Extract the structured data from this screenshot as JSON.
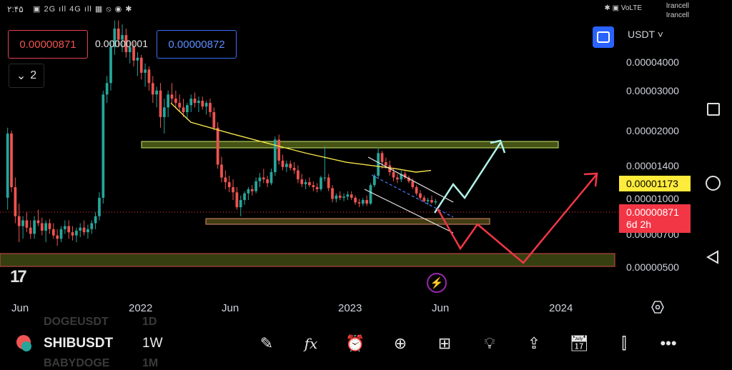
{
  "status_bar": {
    "time": "۲:۴۵",
    "icons_text": "▣ 2G ıll 4G ıll ▦ ⦸ ◉ ✱",
    "carrier_1": "Irancell",
    "carrier_2": "Irancell",
    "sys_icons": "✱ ▣ VoLTE"
  },
  "order_panel": {
    "sell_price": "0.00000871",
    "spread": "0.00000001",
    "buy_price": "0.00000872"
  },
  "indicators_toggle": {
    "count": "2"
  },
  "quote_currency": "USDT",
  "y_axis_labels": [
    "0.00004000",
    "0.00003000",
    "0.00002000",
    "0.00001400",
    "0.00001000",
    "0.00000700",
    "0.00000500"
  ],
  "last_price_tag": {
    "ma_value": "0.00001173",
    "price": "0.00000871",
    "countdown": "6d 2h"
  },
  "x_axis_labels": [
    "Jun",
    "2022",
    "Jun",
    "2023",
    "Jun",
    "2024"
  ],
  "bottom_bar": {
    "symbol": "SHIBUSDT",
    "interval": "1W",
    "ghost_above_symbol": "DOGEUSDT",
    "ghost_above_interval": "1D",
    "ghost_below_symbol": "BABYDOGE",
    "ghost_below_interval": "1M"
  },
  "toolbar_icons": [
    "drawing-pen-icon",
    "function-fx-icon",
    "alert-clock-icon",
    "add-circle-icon",
    "grid-layout-icon",
    "idea-bulb-icon",
    "share-icon",
    "calendar-replay-icon",
    "candles-icon",
    "more-dots-icon"
  ],
  "colors": {
    "up": "#26a69a",
    "down": "#ef5350",
    "ma_line": "#f5e44b",
    "zone_fill": "#6b7a21",
    "zone_border": "#c4e86a",
    "projection_up": "#b2f5ec",
    "projection_down": "#f23645",
    "accent": "#2962ff"
  },
  "chart_data": {
    "type": "candlestick",
    "timeframe": "1W",
    "symbol": "SHIBUSDT",
    "y_scale": "log",
    "ylim": [
      4.5e-06,
      4.8e-05
    ],
    "candles": [
      [
        9e-06,
        1.8e-05,
        8e-06,
        1.7e-05
      ],
      [
        1.7e-05,
        1.75e-05,
        9.5e-06,
        1e-05
      ],
      [
        1e-05,
        1.1e-05,
        7e-06,
        7.5e-06
      ],
      [
        7.5e-06,
        8.5e-06,
        5.8e-06,
        6.8e-06
      ],
      [
        6.8e-06,
        7.5e-06,
        6e-06,
        7.2e-06
      ],
      [
        7.2e-06,
        7.8e-06,
        6.4e-06,
        6.7e-06
      ],
      [
        6.7e-06,
        7.2e-06,
        6e-06,
        6.3e-06
      ],
      [
        6.3e-06,
        7.5e-06,
        6e-06,
        7.2e-06
      ],
      [
        7.2e-06,
        8e-06,
        6.8e-06,
        7e-06
      ],
      [
        7e-06,
        7.4e-06,
        6.2e-06,
        6.5e-06
      ],
      [
        6.5e-06,
        7.2e-06,
        5.8e-06,
        7e-06
      ],
      [
        7e-06,
        7.3e-06,
        6.3e-06,
        6.6e-06
      ],
      [
        6.6e-06,
        7e-06,
        6e-06,
        6.2e-06
      ],
      [
        6.2e-06,
        6.6e-06,
        5.6e-06,
        6e-06
      ],
      [
        6e-06,
        6.8e-06,
        5.8e-06,
        6.6e-06
      ],
      [
        6.6e-06,
        7.2e-06,
        6.3e-06,
        6.8e-06
      ],
      [
        6.8e-06,
        7.2e-06,
        6e-06,
        6.4e-06
      ],
      [
        6.4e-06,
        6.8e-06,
        5.9e-06,
        6.2e-06
      ],
      [
        6.2e-06,
        6.7e-06,
        5.8e-06,
        6.5e-06
      ],
      [
        6.5e-06,
        7e-06,
        6.1e-06,
        6.7e-06
      ],
      [
        6.7e-06,
        7.2e-06,
        6.2e-06,
        6.4e-06
      ],
      [
        6.4e-06,
        6.9e-06,
        6e-06,
        6.6e-06
      ],
      [
        6.6e-06,
        7.2e-06,
        6.3e-06,
        7e-06
      ],
      [
        7e-06,
        7.8e-06,
        6.6e-06,
        7.5e-06
      ],
      [
        7.5e-06,
        9.5e-06,
        7.2e-06,
        9e-06
      ],
      [
        9e-06,
        2.6e-05,
        8.5e-06,
        2.5e-05
      ],
      [
        2.5e-05,
        3e-05,
        2.3e-05,
        2.8e-05
      ],
      [
        2.8e-05,
        4.2e-05,
        2.6e-05,
        4e-05
      ],
      [
        4e-05,
        5.2e-05,
        3.7e-05,
        4.8e-05
      ],
      [
        4.8e-05,
        5.2e-05,
        4e-05,
        4.3e-05
      ],
      [
        4.3e-05,
        5e-05,
        3.8e-05,
        4.5e-05
      ],
      [
        4.5e-05,
        4.8e-05,
        3.6e-05,
        3.8e-05
      ],
      [
        3.8e-05,
        4.2e-05,
        3.4e-05,
        4e-05
      ],
      [
        4e-05,
        4.2e-05,
        3.3e-05,
        3.5e-05
      ],
      [
        3.5e-05,
        3.8e-05,
        3e-05,
        3.6e-05
      ],
      [
        3.6e-05,
        3.7e-05,
        2.9e-05,
        3.1e-05
      ],
      [
        3.1e-05,
        3.4e-05,
        2.7e-05,
        3.2e-05
      ],
      [
        3.2e-05,
        3.3e-05,
        2.6e-05,
        2.8e-05
      ],
      [
        2.8e-05,
        3e-05,
        2.3e-05,
        2.5e-05
      ],
      [
        2.5e-05,
        2.7e-05,
        2.2e-05,
        2.6e-05
      ],
      [
        2.6e-05,
        2.8e-05,
        1.8e-05,
        2e-05
      ],
      [
        2e-05,
        2.4e-05,
        1.7e-05,
        2.2e-05
      ],
      [
        2.2e-05,
        2.6e-05,
        2e-05,
        2.5e-05
      ],
      [
        2.5e-05,
        2.8e-05,
        2.3e-05,
        2.4e-05
      ],
      [
        2.4e-05,
        2.6e-05,
        2.2e-05,
        2.3e-05
      ],
      [
        2.3e-05,
        2.5e-05,
        2.1e-05,
        2.2e-05
      ],
      [
        2.2e-05,
        2.4e-05,
        2e-05,
        2.1e-05
      ],
      [
        2.1e-05,
        2.3e-05,
        1.95e-05,
        2.25e-05
      ],
      [
        2.25e-05,
        2.5e-05,
        2.1e-05,
        2.4e-05
      ],
      [
        2.4e-05,
        2.55e-05,
        2.2e-05,
        2.3e-05
      ],
      [
        2.3e-05,
        2.45e-05,
        2.1e-05,
        2.35e-05
      ],
      [
        2.35e-05,
        2.45e-05,
        2.15e-05,
        2.22e-05
      ],
      [
        2.22e-05,
        2.35e-05,
        2.05e-05,
        2.3e-05
      ],
      [
        2.3e-05,
        2.4e-05,
        2e-05,
        2.1e-05
      ],
      [
        2.1e-05,
        2.2e-05,
        1.75e-05,
        1.8e-05
      ],
      [
        1.8e-05,
        1.9e-05,
        1.2e-05,
        1.25e-05
      ],
      [
        1.25e-05,
        1.35e-05,
        1.05e-05,
        1.1e-05
      ],
      [
        1.1e-05,
        1.18e-05,
        9.8e-06,
        1.05e-05
      ],
      [
        1.05e-05,
        1.12e-05,
        9.5e-06,
        1e-05
      ],
      [
        1e-05,
        1.08e-05,
        8.8e-06,
        9.5e-06
      ],
      [
        9.5e-06,
        1e-05,
        8e-06,
        8.2e-06
      ],
      [
        8.2e-06,
        9.2e-06,
        7.5e-06,
        8.8e-06
      ],
      [
        8.8e-06,
        9.6e-06,
        8.4e-06,
        9.4e-06
      ],
      [
        9.4e-06,
        1e-05,
        8.8e-06,
        9.8e-06
      ],
      [
        9.8e-06,
        1.02e-05,
        9.2e-06,
        9.6e-06
      ],
      [
        9.6e-06,
        1.1e-05,
        9.4e-06,
        1.06e-05
      ],
      [
        1.06e-05,
        1.15e-05,
        1e-05,
        1.1e-05
      ],
      [
        1.1e-05,
        1.2e-05,
        1.04e-05,
        1.08e-05
      ],
      [
        1.08e-05,
        1.12e-05,
        1e-05,
        1.04e-05
      ],
      [
        1.04e-05,
        1.2e-05,
        1.02e-05,
        1.16e-05
      ],
      [
        1.16e-05,
        1.65e-05,
        1.12e-05,
        1.6e-05
      ],
      [
        1.6e-05,
        1.68e-05,
        1.25e-05,
        1.3e-05
      ],
      [
        1.3e-05,
        1.38e-05,
        1.18e-05,
        1.22e-05
      ],
      [
        1.22e-05,
        1.3e-05,
        1.16e-05,
        1.26e-05
      ],
      [
        1.26e-05,
        1.3e-05,
        1.18e-05,
        1.21e-05
      ],
      [
        1.21e-05,
        1.28e-05,
        1.14e-05,
        1.18e-05
      ],
      [
        1.18e-05,
        1.24e-05,
        1.04e-05,
        1.08e-05
      ],
      [
        1.08e-05,
        1.14e-05,
        1e-05,
        1.03e-05
      ],
      [
        1.03e-05,
        1.08e-05,
        9.8e-06,
        1.05e-05
      ],
      [
        1.05e-05,
        1.1e-05,
        1e-05,
        1.02e-05
      ],
      [
        1.02e-05,
        1.06e-05,
        9.6e-06,
        1e-05
      ],
      [
        1e-05,
        1.04e-05,
        9.5e-06,
        9.8e-06
      ],
      [
        9.8e-06,
        1.12e-05,
        9.6e-06,
        1.1e-05
      ],
      [
        1.1e-05,
        1.5e-05,
        1.06e-05,
        1.1e-05
      ],
      [
        1.1e-05,
        1.14e-05,
        9.6e-06,
        9.9e-06
      ],
      [
        9.9e-06,
        1.02e-05,
        8.6e-06,
        8.9e-06
      ],
      [
        8.9e-06,
        9.4e-06,
        8.6e-06,
        9.2e-06
      ],
      [
        9.2e-06,
        9.6e-06,
        8.8e-06,
        9e-06
      ],
      [
        9e-06,
        9.4e-06,
        8.7e-06,
        9.1e-06
      ],
      [
        9.1e-06,
        9.6e-06,
        8.8e-06,
        9.3e-06
      ],
      [
        9.3e-06,
        9.6e-06,
        8.8e-06,
        9e-06
      ],
      [
        9e-06,
        9.2e-06,
        8.4e-06,
        8.6e-06
      ],
      [
        8.6e-06,
        8.9e-06,
        8.2e-06,
        8.5e-06
      ],
      [
        8.5e-06,
        9e-06,
        8.3e-06,
        8.8e-06
      ],
      [
        8.8e-06,
        9.2e-06,
        8.3e-06,
        8.5e-06
      ],
      [
        8.5e-06,
        1.04e-05,
        8.4e-06,
        1.02e-05
      ],
      [
        1.02e-05,
        1.14e-05,
        1e-05,
        1.12e-05
      ],
      [
        1.12e-05,
        1.48e-05,
        1.1e-05,
        1.4e-05
      ],
      [
        1.4e-05,
        1.43e-05,
        1.2e-05,
        1.28e-05
      ],
      [
        1.28e-05,
        1.34e-05,
        1.2e-05,
        1.24e-05
      ],
      [
        1.24e-05,
        1.3e-05,
        1.12e-05,
        1.16e-05
      ],
      [
        1.16e-05,
        1.2e-05,
        1.06e-05,
        1.1e-05
      ],
      [
        1.1e-05,
        1.14e-05,
        1.04e-05,
        1.08e-05
      ],
      [
        1.08e-05,
        1.18e-05,
        1.05e-05,
        1.14e-05
      ],
      [
        1.14e-05,
        1.17e-05,
        1.08e-05,
        1.1e-05
      ],
      [
        1.1e-05,
        1.12e-05,
        1.04e-05,
        1.06e-05
      ],
      [
        1.06e-05,
        1.09e-05,
        9.8e-06,
        1e-05
      ],
      [
        1e-05,
        1.02e-05,
        9.2e-06,
        9.4e-06
      ],
      [
        9.4e-06,
        9.7e-06,
        8.8e-06,
        9e-06
      ],
      [
        9e-06,
        9.2e-06,
        8.6e-06,
        8.7e-06
      ],
      [
        8.7e-06,
        9e-06,
        8.4e-06,
        8.8e-06
      ],
      [
        8.8e-06,
        9.2e-06,
        8.5e-06,
        8.6e-06
      ],
      [
        8.6e-06,
        8.9e-06,
        8.4e-06,
        8.7e-06
      ]
    ],
    "ma_line": [
      [
        0.33,
        2.3e-05
      ],
      [
        0.37,
        1.9e-05
      ],
      [
        0.45,
        1.7e-05
      ],
      [
        0.52,
        1.55e-05
      ],
      [
        0.6,
        1.4e-05
      ],
      [
        0.68,
        1.28e-05
      ],
      [
        0.78,
        1.2e-05
      ],
      [
        0.82,
        1.16e-05
      ],
      [
        0.85,
        1.18e-05
      ]
    ],
    "resistance_zone": [
      1.7e-05,
      1.63e-05
    ],
    "support_zone": [
      8.6e-06,
      8.2e-06
    ],
    "long_term_zone": [
      5.8e-06,
      5.1e-06
    ],
    "last_price": 8.71e-06
  }
}
